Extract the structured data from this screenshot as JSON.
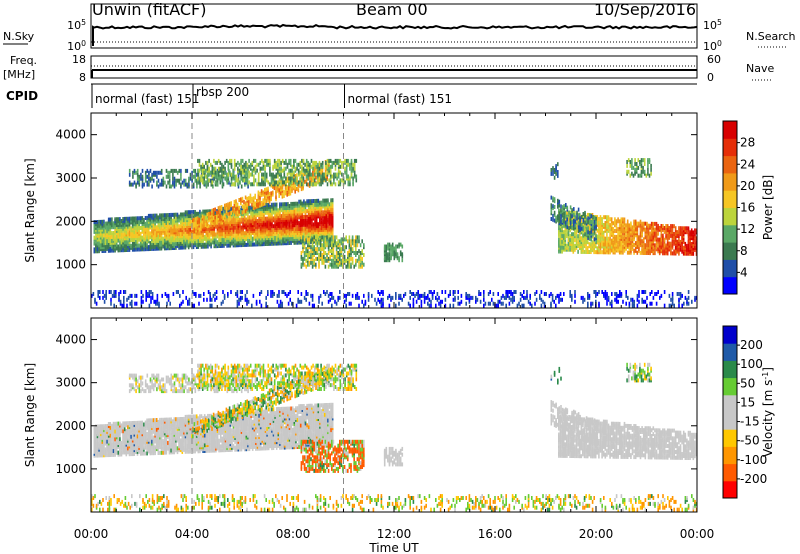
{
  "header": {
    "title": "Unwin (fitACF)",
    "beam": "Beam 00",
    "date": "10/Sep/2016"
  },
  "top_panels": {
    "nsky_label": "N.Sky",
    "nsky_ticks": [
      "10^5",
      "10^0"
    ],
    "nsearch_label": "N.Search",
    "freq_label": "Freq.",
    "freq_unit": "[MHz]",
    "freq_ticks": [
      "18",
      "8"
    ],
    "nave_ticks": [
      "60",
      "0"
    ],
    "nave_label": "Nave",
    "cpid_label": "CPID",
    "cpid_segments": [
      {
        "label": "normal (fast) 151",
        "start_h": 0,
        "end_h": 4
      },
      {
        "label": "rbsp 200",
        "start_h": 4,
        "end_h": 10
      },
      {
        "label": "normal (fast) 151",
        "start_h": 10,
        "end_h": 24
      }
    ]
  },
  "chart_data": [
    {
      "type": "heatmap",
      "title": "",
      "ylabel": "Slant Range [km]",
      "xlabel": "",
      "colorbar_label": "Power [dB]",
      "colorbar_ticks": [
        "4",
        "8",
        "12",
        "16",
        "20",
        "24",
        "28"
      ],
      "colorbar_colors": [
        "#0000ff",
        "#1f4ea8",
        "#3b7a50",
        "#5aa866",
        "#bcd43c",
        "#f6c624",
        "#f09a18",
        "#ea6410",
        "#e52e08",
        "#d80000"
      ],
      "ylim": [
        0,
        4500
      ],
      "yticks": [
        "1000",
        "2000",
        "3000",
        "4000"
      ],
      "xlim_hours": [
        0,
        24
      ]
    },
    {
      "type": "heatmap",
      "title": "",
      "ylabel": "Slant Range [km]",
      "xlabel": "Time UT",
      "colorbar_label": "Velocity [m s^-1]",
      "colorbar_ticks": [
        "-200",
        "-100",
        "-50",
        "-15",
        "15",
        "50",
        "100",
        "200"
      ],
      "colorbar_colors": [
        "#ff0000",
        "#ff5a00",
        "#ff9600",
        "#ffc800",
        "#c8c8c8",
        "#c8c8c8",
        "#66cc33",
        "#2a8a4a",
        "#1f5aa8",
        "#0000cc"
      ],
      "ylim": [
        0,
        4500
      ],
      "yticks": [
        "1000",
        "2000",
        "3000",
        "4000"
      ],
      "xticks": [
        "00:00",
        "04:00",
        "08:00",
        "12:00",
        "16:00",
        "20:00",
        "00:00"
      ],
      "xlim_hours": [
        0,
        24
      ]
    }
  ]
}
